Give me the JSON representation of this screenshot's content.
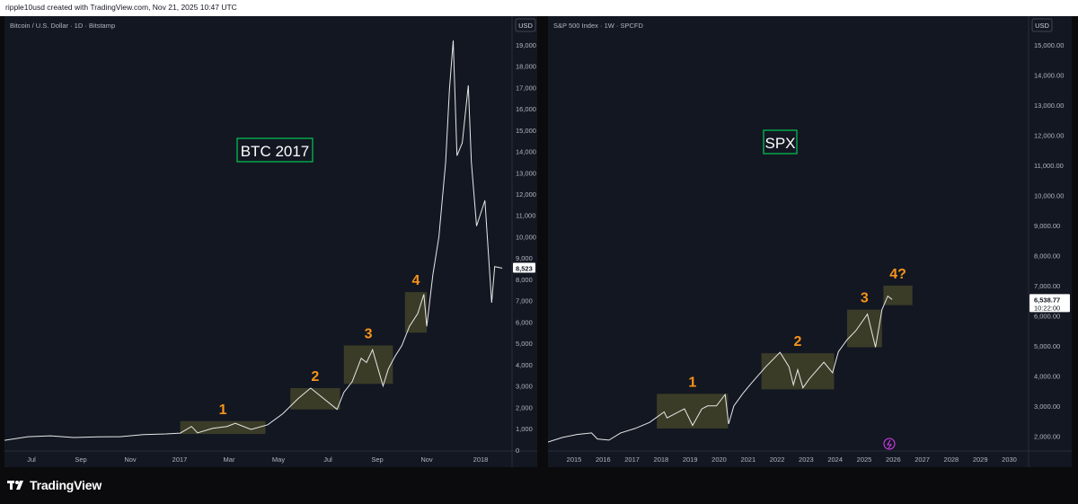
{
  "header": {
    "attribution": "ripple10usd created with TradingView.com, Nov 21, 2025 10:47 UTC"
  },
  "footer": {
    "brand": "TradingView"
  },
  "colors": {
    "background": "#131722",
    "line": "#e8e8e8",
    "wave_number": "#f7931a",
    "zone_fill": "#4a4a2a",
    "label_border": "#00c853",
    "price_tag": "#ffffff"
  },
  "chart_data": [
    {
      "type": "line",
      "instrument": "Bitcoin / U.S. Dollar · 1D · Bitstamp",
      "title": "BTC 2017",
      "currency": "USD",
      "x_axis_labels": [
        "Jul",
        "Sep",
        "Nov",
        "2017",
        "Mar",
        "May",
        "Jul",
        "Sep",
        "Nov",
        "2018"
      ],
      "y_ticks": [
        "19,000",
        "18,000",
        "17,000",
        "16,000",
        "15,000",
        "14,000",
        "13,000",
        "12,000",
        "11,000",
        "10,000",
        "9,000",
        "8,000",
        "7,000",
        "6,000",
        "5,000",
        "4,000",
        "3,000",
        "2,000",
        "1,000",
        "0"
      ],
      "ylim": [
        -50,
        19500
      ],
      "last_price": "8,523",
      "series": [
        {
          "x": [
            "2016-05-01",
            "2016-06-01",
            "2016-07-01",
            "2016-08-01",
            "2016-09-01",
            "2016-10-01",
            "2016-11-01",
            "2016-12-01",
            "2016-12-20",
            "2017-01-04",
            "2017-01-12",
            "2017-02-01",
            "2017-02-20",
            "2017-03-03",
            "2017-03-24",
            "2017-04-15",
            "2017-05-05",
            "2017-05-25",
            "2017-06-11",
            "2017-06-25",
            "2017-07-16",
            "2017-07-25",
            "2017-08-05",
            "2017-08-17",
            "2017-08-24",
            "2017-09-01",
            "2017-09-15",
            "2017-09-22",
            "2017-10-01",
            "2017-10-10",
            "2017-10-20",
            "2017-10-31",
            "2017-11-08",
            "2017-11-12",
            "2017-11-20",
            "2017-11-28",
            "2017-12-07",
            "2017-12-12",
            "2017-12-17",
            "2017-12-22",
            "2017-12-29",
            "2018-01-06",
            "2018-01-10",
            "2018-01-17",
            "2018-01-28",
            "2018-02-06",
            "2018-02-10",
            "2018-02-20"
          ],
          "y": [
            450,
            620,
            660,
            580,
            610,
            620,
            720,
            750,
            790,
            1100,
            800,
            1010,
            1100,
            1250,
            960,
            1180,
            1700,
            2400,
            2900,
            2500,
            1900,
            2700,
            3200,
            4300,
            4100,
            4700,
            3000,
            3800,
            4400,
            4900,
            5800,
            6400,
            7300,
            5800,
            8200,
            10000,
            13500,
            16900,
            19200,
            13800,
            14400,
            17100,
            13500,
            10500,
            11700,
            6900,
            8600,
            8523
          ]
        }
      ],
      "waves": [
        {
          "label": "1",
          "x0": "2016-12-20",
          "x1": "2017-04-12",
          "y0": 750,
          "y1": 1350
        },
        {
          "label": "2",
          "x0": "2017-05-15",
          "x1": "2017-07-20",
          "y0": 1900,
          "y1": 2900
        },
        {
          "label": "3",
          "x0": "2017-07-25",
          "x1": "2017-09-28",
          "y0": 3100,
          "y1": 4900
        },
        {
          "label": "4",
          "x0": "2017-10-14",
          "x1": "2017-11-12",
          "y0": 5500,
          "y1": 7400
        }
      ]
    },
    {
      "type": "line",
      "instrument": "S&P 500 Index · 1W · SPCFD",
      "title": "SPX",
      "currency": "USD",
      "x_axis_labels": [
        "2015",
        "2016",
        "2017",
        "2018",
        "2019",
        "2020",
        "2021",
        "2022",
        "2023",
        "2024",
        "2025",
        "2026",
        "2027",
        "2028",
        "2029",
        "2030"
      ],
      "y_ticks": [
        "15,000.00",
        "14,000.00",
        "13,000.00",
        "12,000.00",
        "11,000.00",
        "10,000.00",
        "9,000.00",
        "8,000.00",
        "7,000.00",
        "6,000.00",
        "5,000.00",
        "4,000.00",
        "3,000.00",
        "2,000.00"
      ],
      "ylim": [
        1500,
        15600
      ],
      "last_price": "6,538.77",
      "countdown": "10:22:00",
      "series": [
        {
          "x": [
            2014.0,
            2014.5,
            2015.0,
            2015.5,
            2015.7,
            2016.1,
            2016.5,
            2017.0,
            2017.5,
            2018.0,
            2018.1,
            2018.7,
            2018.98,
            2019.3,
            2019.5,
            2019.8,
            2020.1,
            2020.22,
            2020.4,
            2020.7,
            2021.0,
            2021.5,
            2021.99,
            2022.3,
            2022.45,
            2022.6,
            2022.78,
            2023.0,
            2023.5,
            2023.8,
            2024.0,
            2024.3,
            2024.6,
            2025.0,
            2025.28,
            2025.5,
            2025.7,
            2025.85
          ],
          "y": [
            1800,
            1950,
            2050,
            2100,
            1900,
            1860,
            2100,
            2250,
            2450,
            2800,
            2600,
            2900,
            2350,
            2900,
            3000,
            3000,
            3380,
            2400,
            3000,
            3400,
            3750,
            4300,
            4780,
            4300,
            3700,
            4200,
            3600,
            3900,
            4450,
            4100,
            4800,
            5200,
            5500,
            6050,
            4950,
            6200,
            6650,
            6539
          ]
        }
      ],
      "waves": [
        {
          "label": "1",
          "x0": 2017.75,
          "x1": 2020.2,
          "y0": 2250,
          "y1": 3400
        },
        {
          "label": "2",
          "x0": 2021.35,
          "x1": 2023.85,
          "y0": 3550,
          "y1": 4750
        },
        {
          "label": "3",
          "x0": 2024.3,
          "x1": 2025.5,
          "y0": 4950,
          "y1": 6200
        },
        {
          "label": "4?",
          "x0": 2025.55,
          "x1": 2026.55,
          "y0": 6350,
          "y1": 7000
        }
      ]
    }
  ]
}
